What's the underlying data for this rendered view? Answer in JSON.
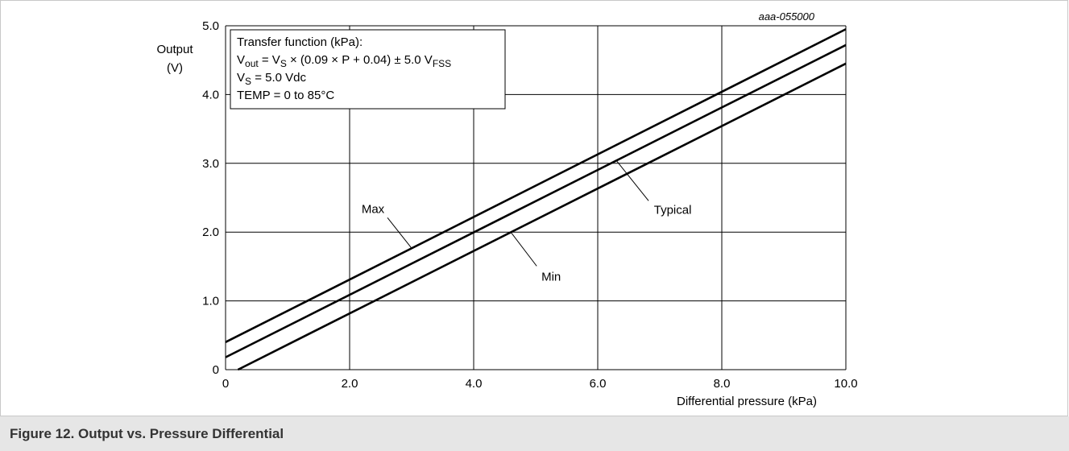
{
  "figure": {
    "id_label": "aaa-055000",
    "caption": "Figure 12.  Output vs. Pressure Differential"
  },
  "chart_data": {
    "type": "line",
    "xlabel": "Differential pressure (kPa)",
    "ylabel_line1": "Output",
    "ylabel_line2": "(V)",
    "xlim": [
      0,
      10
    ],
    "ylim": [
      0,
      5
    ],
    "grid": true,
    "x_ticks": [
      0,
      2,
      4,
      6,
      8,
      10
    ],
    "x_tick_labels": [
      "0",
      "2.0",
      "4.0",
      "6.0",
      "8.0",
      "10.0"
    ],
    "y_ticks": [
      0,
      1,
      2,
      3,
      4,
      5
    ],
    "y_tick_labels": [
      "0",
      "1.0",
      "2.0",
      "3.0",
      "4.0",
      "5.0"
    ],
    "series": [
      {
        "name": "Max",
        "x": [
          0,
          10
        ],
        "y": [
          0.4,
          4.95
        ]
      },
      {
        "name": "Typical",
        "x": [
          0,
          10
        ],
        "y": [
          0.18,
          4.72
        ]
      },
      {
        "name": "Min",
        "x": [
          0.2,
          10
        ],
        "y": [
          0.0,
          4.45
        ]
      }
    ],
    "annotations": [
      {
        "text": "Max",
        "series": "Max",
        "at_x": 3.0
      },
      {
        "text": "Typical",
        "series": "Typical",
        "at_x": 6.3
      },
      {
        "text": "Min",
        "series": "Min",
        "at_x": 4.6
      }
    ],
    "legend_box": {
      "placement": "top-left",
      "title": "Transfer function (kPa):",
      "lines": [
        {
          "main": "V",
          "sub": "out",
          "rest": " = V",
          "sub2": "S",
          "rest2": " × (0.09 × P + 0.04) ± 5.0 V",
          "sub3": "FSS"
        },
        {
          "main": "V",
          "sub": "S",
          "rest": " = 5.0 Vdc"
        }
      ],
      "last_line": "TEMP = 0 to 85°C"
    }
  }
}
